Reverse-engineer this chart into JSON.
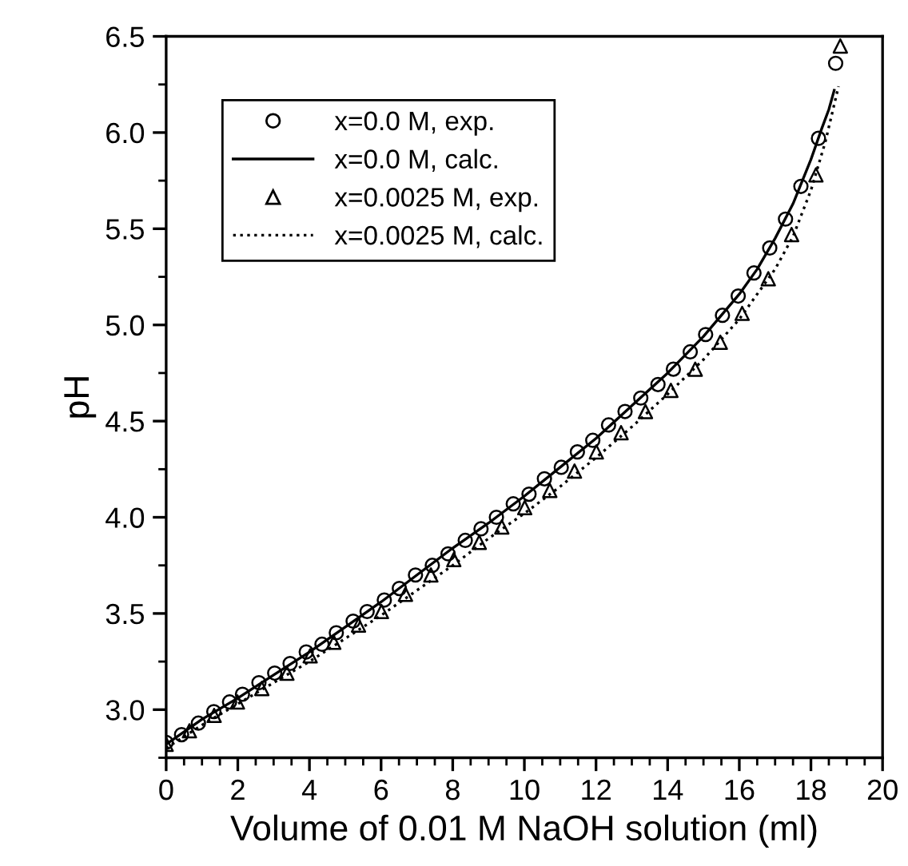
{
  "chart_data": {
    "type": "scatter",
    "xlabel": "Volume of 0.01 M NaOH solution (ml)",
    "ylabel": "pH",
    "xlim": [
      0,
      20
    ],
    "ylim": [
      2.75,
      6.5
    ],
    "xticks": [
      0,
      2,
      4,
      6,
      8,
      10,
      12,
      14,
      16,
      18,
      20
    ],
    "yticks": [
      {
        "value": 3.0,
        "label": "3.0"
      },
      {
        "value": 3.5,
        "label": "3.5"
      },
      {
        "value": 4.0,
        "label": "4.0"
      },
      {
        "value": 4.5,
        "label": "4.5"
      },
      {
        "value": 5.0,
        "label": "5.0"
      },
      {
        "value": 5.5,
        "label": "5.5"
      },
      {
        "value": 6.0,
        "label": "6.0"
      },
      {
        "value": 6.5,
        "label": "6.5"
      }
    ],
    "grid": false,
    "legend": "top left",
    "series": [
      {
        "name": "x=0.0 M, exp.",
        "marker": "circle",
        "color": "#000000",
        "x": [
          0,
          0.43,
          0.9,
          1.33,
          1.77,
          2.13,
          2.59,
          3.03,
          3.46,
          3.91,
          4.35,
          4.75,
          5.22,
          5.61,
          6.09,
          6.51,
          6.96,
          7.43,
          7.87,
          8.35,
          8.79,
          9.22,
          9.69,
          10.13,
          10.56,
          11.03,
          11.48,
          11.91,
          12.35,
          12.81,
          13.25,
          13.73,
          14.16,
          14.63,
          15.06,
          15.53,
          15.97,
          16.41,
          16.85,
          17.29,
          17.72,
          18.21,
          18.69
        ],
        "values": [
          2.83,
          2.87,
          2.93,
          2.99,
          3.04,
          3.08,
          3.14,
          3.19,
          3.24,
          3.3,
          3.34,
          3.4,
          3.46,
          3.51,
          3.57,
          3.63,
          3.7,
          3.75,
          3.81,
          3.88,
          3.94,
          4.0,
          4.07,
          4.12,
          4.2,
          4.26,
          4.34,
          4.4,
          4.48,
          4.55,
          4.62,
          4.69,
          4.77,
          4.86,
          4.95,
          5.05,
          5.15,
          5.27,
          5.4,
          5.55,
          5.72,
          5.97,
          6.36
        ]
      },
      {
        "name": "x=0.0 M, calc.",
        "type": "line",
        "line_style": "solid",
        "color": "#000000",
        "x": [
          0,
          1,
          2,
          3,
          4,
          5,
          6,
          7,
          8,
          9,
          10,
          11,
          12,
          13,
          14,
          15,
          16,
          16.5,
          17,
          17.5,
          18,
          18.3,
          18.5,
          18.65
        ],
        "values": [
          2.82,
          2.95,
          3.06,
          3.18,
          3.3,
          3.43,
          3.56,
          3.7,
          3.84,
          3.97,
          4.11,
          4.26,
          4.41,
          4.58,
          4.75,
          4.94,
          5.16,
          5.29,
          5.45,
          5.63,
          5.86,
          6.02,
          6.12,
          6.22
        ]
      },
      {
        "name": "x=0.0025 M, exp.",
        "marker": "triangle",
        "color": "#000000",
        "x": [
          0,
          0.65,
          1.34,
          1.99,
          2.67,
          3.37,
          4.02,
          4.68,
          5.37,
          6.01,
          6.68,
          7.39,
          8.03,
          8.74,
          9.37,
          10.01,
          10.71,
          11.4,
          12.01,
          12.7,
          13.38,
          14.09,
          14.77,
          15.47,
          16.08,
          16.81,
          17.46,
          18.14,
          18.82
        ],
        "values": [
          2.82,
          2.89,
          2.97,
          3.04,
          3.11,
          3.19,
          3.28,
          3.35,
          3.44,
          3.51,
          3.6,
          3.7,
          3.78,
          3.87,
          3.95,
          4.05,
          4.14,
          4.24,
          4.34,
          4.44,
          4.55,
          4.66,
          4.77,
          4.91,
          5.06,
          5.24,
          5.47,
          5.78,
          6.45
        ]
      },
      {
        "name": "x=0.0025 M, calc.",
        "type": "line",
        "line_style": "dotted",
        "color": "#000000",
        "x": [
          0,
          1,
          2,
          3,
          4,
          5,
          6,
          7,
          8,
          9,
          10,
          11,
          12,
          13,
          14,
          15,
          16,
          17,
          17.5,
          18,
          18.4,
          18.77
        ],
        "values": [
          2.8,
          2.92,
          3.03,
          3.14,
          3.25,
          3.37,
          3.49,
          3.62,
          3.75,
          3.89,
          4.02,
          4.16,
          4.31,
          4.47,
          4.64,
          4.82,
          5.03,
          5.29,
          5.46,
          5.7,
          5.95,
          6.24
        ]
      }
    ]
  }
}
